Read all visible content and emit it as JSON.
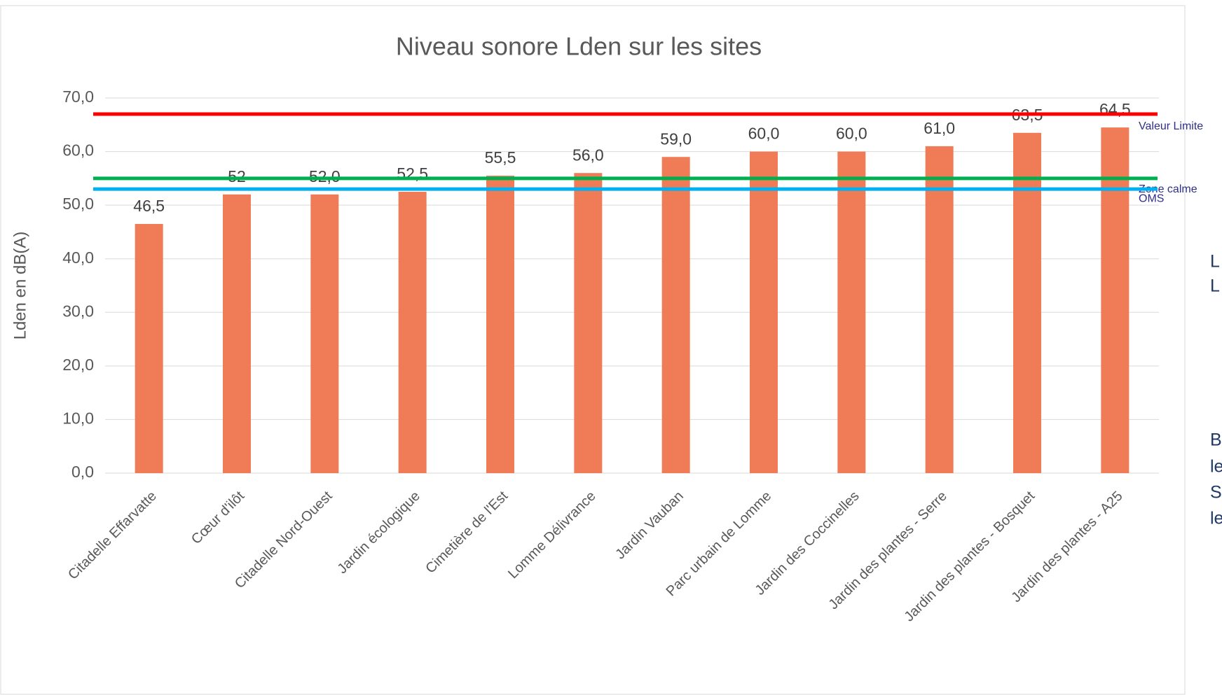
{
  "chart_data": {
    "type": "bar",
    "title": "Niveau sonore Lden sur les sites",
    "y_label": "Lden en dB(A)",
    "categories": [
      "Citadelle Effarvatte",
      "Cœur d'ilôt",
      "Citadelle Nord-Ouest",
      "Jardin écologique",
      "Cimetière de l'Est",
      "Lomme Délivrance",
      "Jardin Vauban",
      "Parc urbain de Lomme",
      "Jardin des Coccinelles",
      "Jardin des plantes - Serre",
      "Jardin des plantes - Bosquet",
      "Jardin des plantes - A25"
    ],
    "values": [
      46.5,
      52,
      52,
      52.5,
      55.5,
      56,
      59,
      60,
      60,
      61,
      63.5,
      64.5
    ],
    "value_labels": [
      "46,5",
      "52",
      "52,0",
      "52,5",
      "55,5",
      "56,0",
      "59,0",
      "60,0",
      "60,0",
      "61,0",
      "63,5",
      "64,5"
    ],
    "color": "#f07c57",
    "ylim": [
      0,
      70
    ],
    "yticks": [
      {
        "value": 0,
        "label": "0,0"
      },
      {
        "value": 10,
        "label": "10,0"
      },
      {
        "value": 20,
        "label": "20,0"
      },
      {
        "value": 30,
        "label": "30,0"
      },
      {
        "value": 40,
        "label": "40,0"
      },
      {
        "value": 50,
        "label": "50,0"
      },
      {
        "value": 60,
        "label": "60,0"
      },
      {
        "value": 70,
        "label": "70,0"
      }
    ],
    "grid": true,
    "reference_lines": [
      {
        "name": "Valeur Limite",
        "value": 67,
        "color": "#ff0000"
      },
      {
        "name": "Zone calme",
        "value": 55,
        "color": "#00b050"
      },
      {
        "name": "OMS",
        "value": 53,
        "color": "#00b0f0"
      }
    ]
  },
  "side_text": [
    "L",
    "L",
    "B",
    "le",
    "S",
    "le"
  ]
}
